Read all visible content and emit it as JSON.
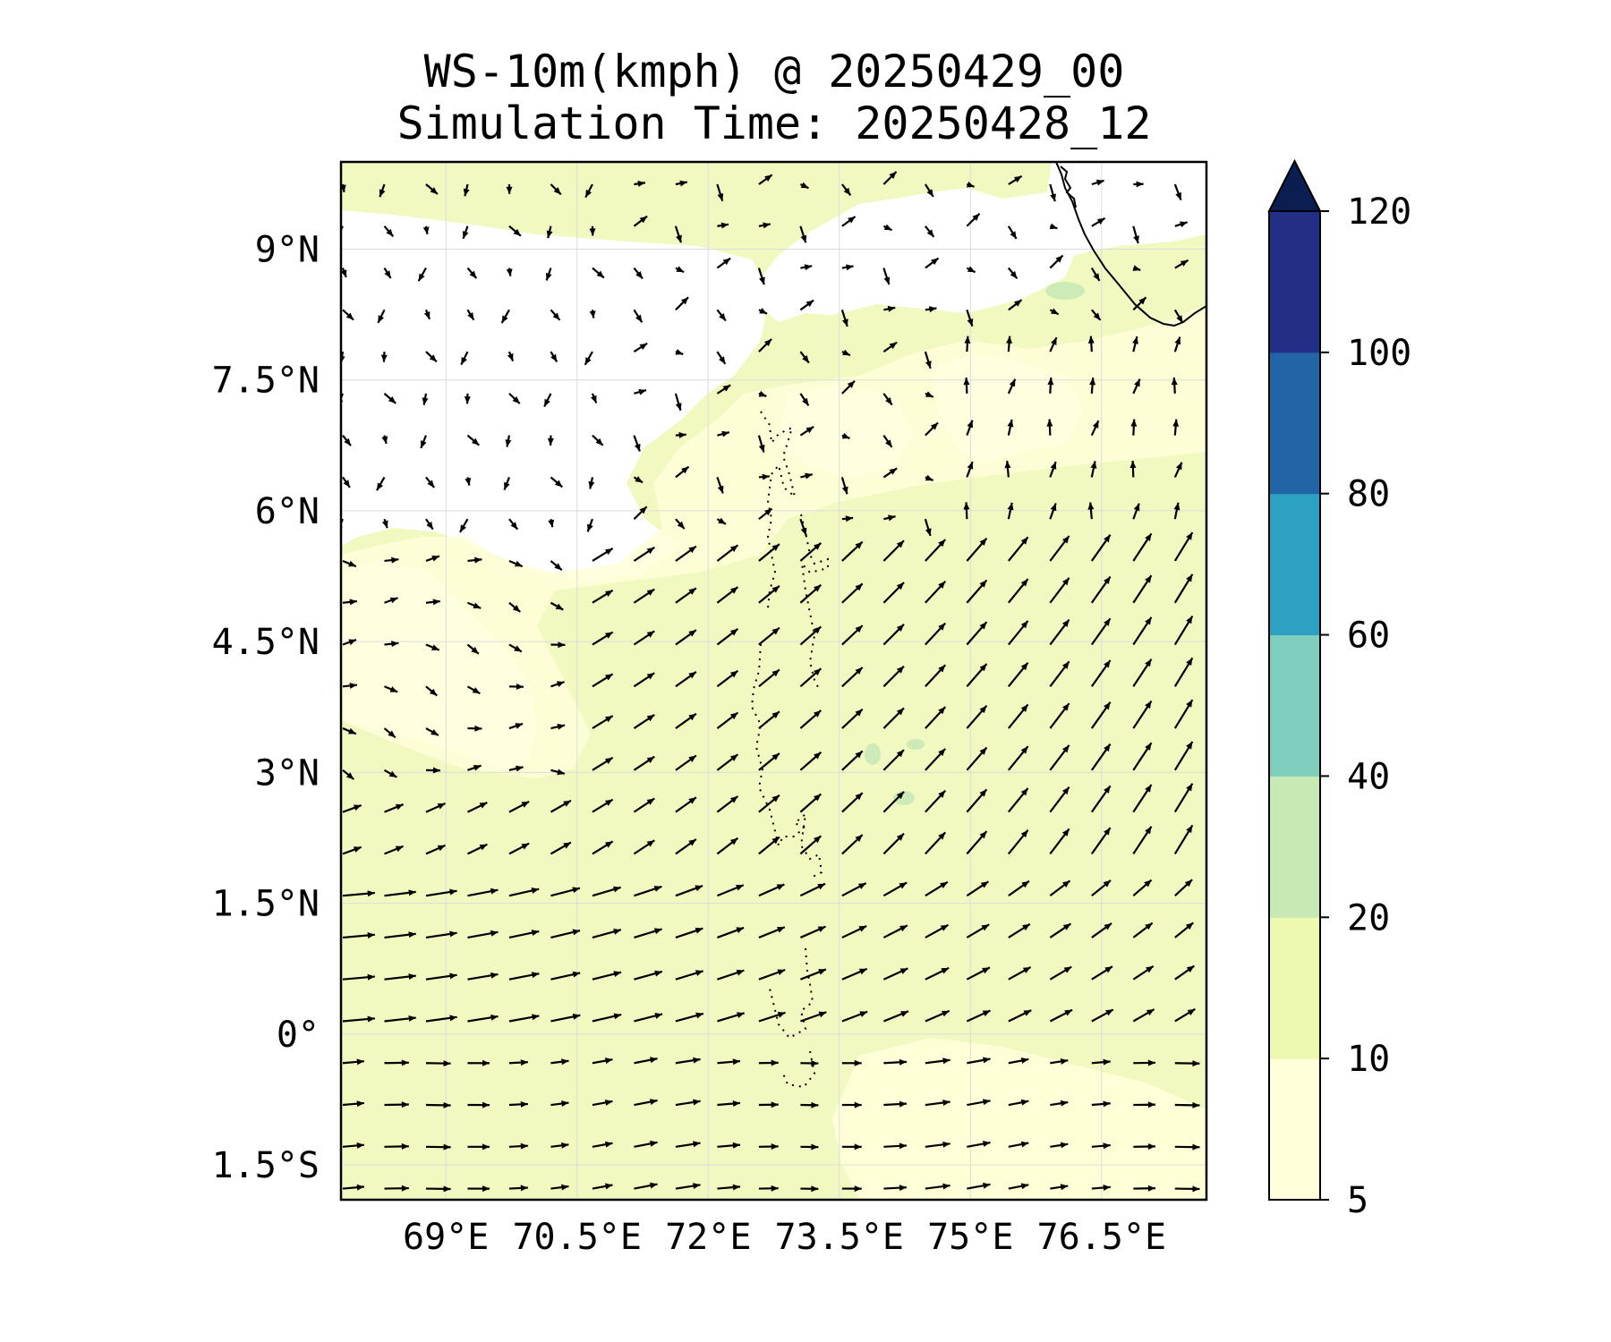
{
  "title": "WS-10m(kmph) @ 20250429_00",
  "subtitle": "Simulation Time: 20250428_12",
  "map": {
    "lon_range": [
      67.8,
      77.7
    ],
    "lat_range": [
      -1.9,
      10.0
    ],
    "x_tick_labels": [
      {
        "value": 69,
        "label": "69°E"
      },
      {
        "value": 70.5,
        "label": "70.5°E"
      },
      {
        "value": 72,
        "label": "72°E"
      },
      {
        "value": 73.5,
        "label": "73.5°E"
      },
      {
        "value": 75,
        "label": "75°E"
      },
      {
        "value": 76.5,
        "label": "76.5°E"
      }
    ],
    "y_tick_labels": [
      {
        "value": 9,
        "label": "9°N"
      },
      {
        "value": 7.5,
        "label": "7.5°N"
      },
      {
        "value": 6,
        "label": "6°N"
      },
      {
        "value": 4.5,
        "label": "4.5°N"
      },
      {
        "value": 3,
        "label": "3°N"
      },
      {
        "value": 1.5,
        "label": "1.5°N"
      },
      {
        "value": 0,
        "label": "0°"
      },
      {
        "value": -1.5,
        "label": "1.5°S"
      }
    ],
    "gridlines": true,
    "vector_field": "wind arrows, mostly westerly to south-westerly",
    "coastline": "southern tip of India (top right)",
    "islands": "Maldives atolls (dotted outlines near 73-73.5°E)"
  },
  "colorbar": {
    "extend": "max",
    "levels": [
      5,
      10,
      20,
      40,
      60,
      80,
      100,
      120
    ],
    "tick_labels": [
      "5",
      "10",
      "20",
      "40",
      "60",
      "80",
      "100",
      "120"
    ],
    "colors": [
      "#ffffd9",
      "#edf8b1",
      "#c7e9b4",
      "#7fcdbb",
      "#2ca1c2",
      "#2165a6",
      "#212f86",
      "#0a1e51"
    ]
  },
  "colors": {
    "calm": "#ffffff",
    "band_5_10": "#ffffd9",
    "band_10_20": "#f1f9c0",
    "band_20_40": "#cdebb7",
    "arrow": "#000000",
    "grid": "#dcdcdc"
  }
}
